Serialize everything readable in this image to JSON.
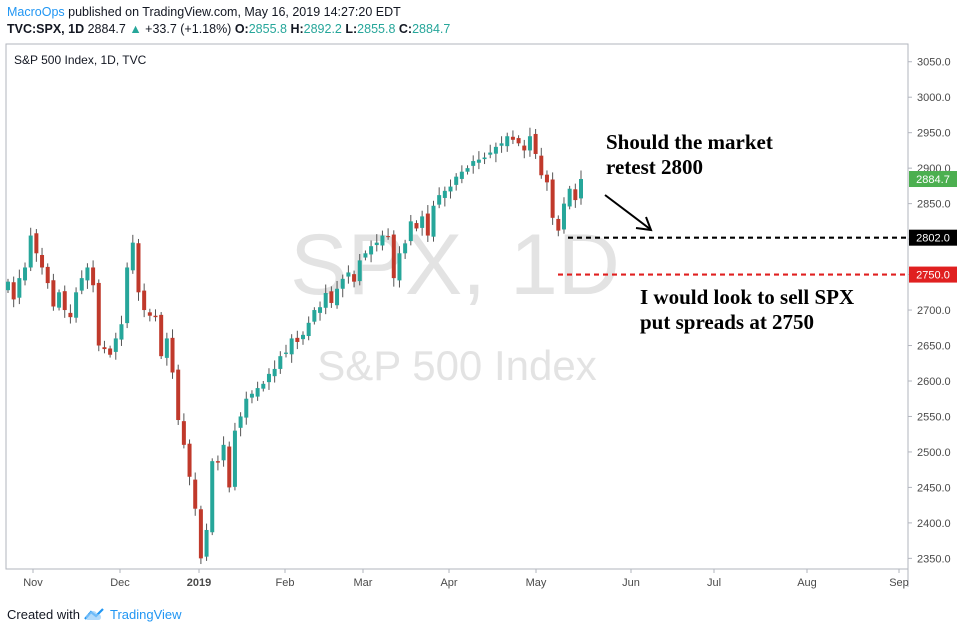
{
  "header": {
    "author": "MacroOps",
    "published_text": " published on TradingView.com, May 16, 2019 14:27:20 EDT",
    "symbol": "TVC:SPX, 1D",
    "last": "2884.7",
    "change": "+33.7 (+1.18%)",
    "o_label": "O:",
    "o_value": "2855.8",
    "h_label": "H:",
    "h_value": "2892.2",
    "l_label": "L:",
    "l_value": "2855.8",
    "c_label": "C:",
    "c_value": "2884.7"
  },
  "footer": {
    "created_with": "Created with",
    "brand": "TradingView"
  },
  "colors": {
    "up": "#26a69a",
    "down": "#c0392b",
    "author": "#2196f3",
    "dashed_black": "#000000",
    "dashed_red": "#e02020",
    "price_tag_green": "#4caf50"
  },
  "icons": {
    "change_arrow": "triangle-up-icon",
    "logo": "tradingview-cloud-icon"
  },
  "chart_data": {
    "type": "candlestick",
    "title": "S&P 500 Index, 1D, TVC",
    "watermark_symbol": "SPX, 1D",
    "watermark_name": "S&P 500 Index",
    "x_labels": [
      "Nov",
      "Dec",
      "2019",
      "Feb",
      "Mar",
      "Apr",
      "May",
      "Jun",
      "Jul",
      "Aug",
      "Sep"
    ],
    "y_ticks": [
      2350,
      2400,
      2450,
      2500,
      2550,
      2600,
      2650,
      2700,
      2750,
      2800,
      2850,
      2900,
      2950,
      3000,
      3050
    ],
    "ylim": [
      2335,
      3075
    ],
    "axis_position": "right",
    "grid": false,
    "price_tags": [
      {
        "value": 2884.7,
        "label": "2884.7",
        "style": "last-price"
      },
      {
        "value": 2802.0,
        "label": "2802.0",
        "style": "black"
      },
      {
        "value": 2750.0,
        "label": "2750.0",
        "style": "red"
      }
    ],
    "levels": [
      {
        "value": 2802,
        "color": "black",
        "style": "dashed"
      },
      {
        "value": 2750,
        "color": "red",
        "style": "dashed"
      }
    ],
    "annotations": [
      {
        "text": [
          "Should the market",
          "retest 2800"
        ]
      },
      {
        "text": [
          "I would look to sell SPX",
          "put spreads at 2750"
        ]
      }
    ],
    "closes": [
      2740,
      2715,
      2745,
      2760,
      2805,
      2780,
      2760,
      2738,
      2705,
      2725,
      2700,
      2690,
      2725,
      2745,
      2760,
      2735,
      2650,
      2645,
      2637,
      2660,
      2680,
      2760,
      2795,
      2725,
      2700,
      2692,
      2690,
      2635,
      2660,
      2612,
      2545,
      2510,
      2465,
      2420,
      2350,
      2390,
      2487,
      2485,
      2510,
      2450,
      2530,
      2550,
      2575,
      2582,
      2590,
      2596,
      2610,
      2617,
      2635,
      2640,
      2660,
      2655,
      2665,
      2682,
      2700,
      2704,
      2724,
      2710,
      2730,
      2744,
      2753,
      2740,
      2770,
      2780,
      2790,
      2795,
      2805,
      2804,
      2745,
      2780,
      2794,
      2825,
      2815,
      2832,
      2805,
      2847,
      2862,
      2868,
      2874,
      2888,
      2895,
      2900,
      2910,
      2912,
      2915,
      2922,
      2930,
      2935,
      2945,
      2940,
      2935,
      2925,
      2945,
      2920,
      2890,
      2880,
      2830,
      2812,
      2850,
      2871,
      2855,
      2884.7
    ]
  }
}
